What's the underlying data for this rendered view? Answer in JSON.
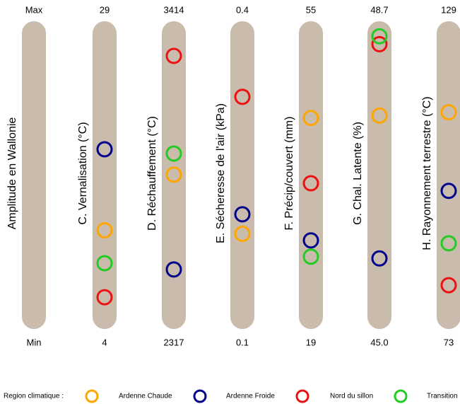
{
  "chart_data": {
    "type": "parallel",
    "range_label": "Amplitude en Wallonie",
    "max_label": "Max",
    "min_label": "Min",
    "bar_color": "#c9bcac",
    "axes": [
      {
        "name": "C. Vernalisation (°C)",
        "max": 29,
        "min": 4
      },
      {
        "name": "D. Réchauffement (°C)",
        "max": 3414,
        "min": 2317
      },
      {
        "name": "E. Sécheresse de l'air (kPa)",
        "max": 0.4,
        "min": 0.1
      },
      {
        "name": "F. Précip/couvert (mm)",
        "max": 55,
        "min": 19
      },
      {
        "name": "G. Chal. Latente (%)",
        "max": 48.7,
        "min": {
          "value": 45,
          "label": "45.0"
        }
      },
      {
        "name": "H. Rayonnement terrestre (°C)",
        "max": 129,
        "min": 73
      }
    ],
    "legend_title": "Region climatique :",
    "series": [
      {
        "name": "Ardenne Chaude",
        "color": "#ffa500",
        "values": [
          11.8,
          2867,
          0.19,
          44,
          47.6,
          113
        ]
      },
      {
        "name": "Ardenne Froide",
        "color": "#00008b",
        "values": [
          18.7,
          2513,
          0.21,
          29,
          45.8,
          98
        ]
      },
      {
        "name": "Nord du sillon",
        "color": "#ee1111",
        "values": [
          6.1,
          3311,
          0.33,
          36,
          48.5,
          80
        ]
      },
      {
        "name": "Transition",
        "color": "#22cc22",
        "values": [
          9.0,
          2946,
          null,
          27,
          48.6,
          88
        ]
      }
    ]
  }
}
